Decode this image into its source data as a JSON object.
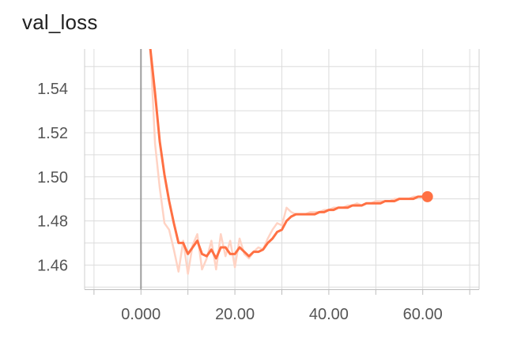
{
  "chart_data": {
    "type": "line",
    "title": "val_loss",
    "xlabel": "",
    "ylabel": "",
    "xlim": [
      -12,
      72
    ],
    "ylim": [
      1.449,
      1.558
    ],
    "x_ticks": [
      0,
      20,
      40,
      60
    ],
    "x_tick_labels": [
      "0.000",
      "20.00",
      "40.00",
      "60.00"
    ],
    "y_ticks": [
      1.46,
      1.48,
      1.5,
      1.52,
      1.54
    ],
    "y_tick_labels": [
      "1.46",
      "1.48",
      "1.50",
      "1.52",
      "1.54"
    ],
    "grid": true,
    "legend": "none",
    "series": [
      {
        "role": "raw",
        "color": "#ffd3c4",
        "x": [
          2,
          3,
          4,
          5,
          6,
          7,
          8,
          9,
          10,
          11,
          12,
          13,
          14,
          15,
          16,
          17,
          18,
          19,
          20,
          21,
          22,
          23,
          24,
          25,
          26,
          27,
          28,
          29,
          30,
          31,
          32,
          33,
          34,
          35,
          36,
          37,
          38,
          39,
          40,
          41,
          42,
          43,
          44,
          45,
          46,
          47,
          48,
          49,
          50,
          51,
          52,
          53,
          54,
          55,
          56,
          57,
          58,
          59,
          60,
          61
        ],
        "values": [
          1.558,
          1.515,
          1.495,
          1.479,
          1.476,
          1.467,
          1.457,
          1.471,
          1.456,
          1.469,
          1.474,
          1.458,
          1.463,
          1.471,
          1.458,
          1.474,
          1.464,
          1.471,
          1.459,
          1.472,
          1.465,
          1.463,
          1.466,
          1.468,
          1.467,
          1.472,
          1.476,
          1.479,
          1.478,
          1.486,
          1.484,
          1.483,
          1.483,
          1.483,
          1.484,
          1.484,
          1.484,
          1.485,
          1.485,
          1.486,
          1.486,
          1.486,
          1.487,
          1.487,
          1.488,
          1.487,
          1.488,
          1.488,
          1.489,
          1.489,
          1.489,
          1.489,
          1.49,
          1.49,
          1.49,
          1.49,
          1.491,
          1.491,
          1.491,
          1.491
        ]
      },
      {
        "role": "smoothed",
        "color": "#ff7043",
        "x": [
          2,
          3,
          4,
          5,
          6,
          7,
          8,
          9,
          10,
          11,
          12,
          13,
          14,
          15,
          16,
          17,
          18,
          19,
          20,
          21,
          22,
          23,
          24,
          25,
          26,
          27,
          28,
          29,
          30,
          31,
          32,
          33,
          34,
          35,
          36,
          37,
          38,
          39,
          40,
          41,
          42,
          43,
          44,
          45,
          46,
          47,
          48,
          49,
          50,
          51,
          52,
          53,
          54,
          55,
          56,
          57,
          58,
          59,
          60,
          61
        ],
        "values": [
          1.558,
          1.538,
          1.516,
          1.501,
          1.489,
          1.479,
          1.47,
          1.47,
          1.465,
          1.468,
          1.471,
          1.465,
          1.464,
          1.467,
          1.463,
          1.468,
          1.468,
          1.465,
          1.465,
          1.468,
          1.466,
          1.464,
          1.466,
          1.466,
          1.467,
          1.47,
          1.472,
          1.475,
          1.476,
          1.48,
          1.482,
          1.483,
          1.483,
          1.483,
          1.483,
          1.483,
          1.484,
          1.484,
          1.485,
          1.485,
          1.486,
          1.486,
          1.486,
          1.487,
          1.487,
          1.487,
          1.488,
          1.488,
          1.488,
          1.488,
          1.489,
          1.489,
          1.489,
          1.49,
          1.49,
          1.49,
          1.49,
          1.491,
          1.491,
          1.491
        ]
      }
    ]
  }
}
